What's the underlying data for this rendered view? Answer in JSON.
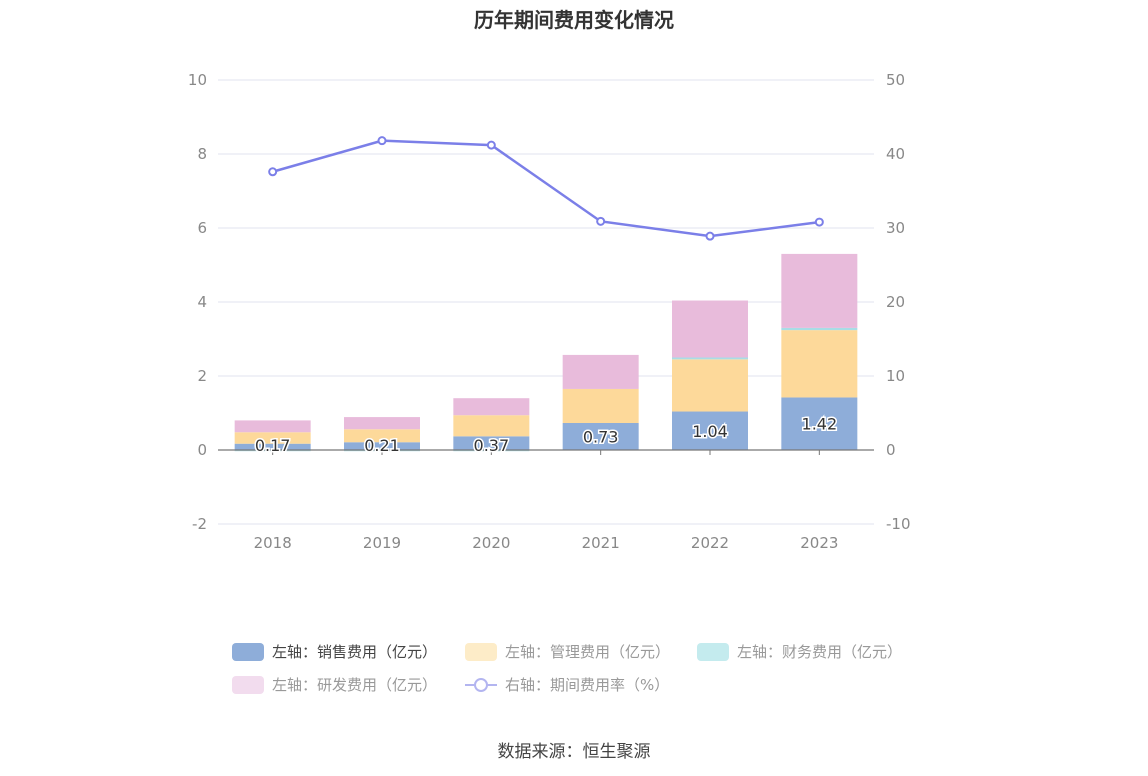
{
  "title": "历年期间费用变化情况",
  "source": "数据来源：恒生聚源",
  "chart_data": {
    "type": "bar",
    "stacked": true,
    "categories": [
      "2018",
      "2019",
      "2020",
      "2021",
      "2022",
      "2023"
    ],
    "y_left": {
      "ylim": [
        -2,
        10
      ],
      "ticks": [
        "10",
        "8",
        "6",
        "4",
        "2",
        "0",
        "-2"
      ]
    },
    "y_right": {
      "ylim": [
        -10,
        50
      ],
      "ticks": [
        "50",
        "40",
        "30",
        "20",
        "10",
        "0",
        "-10"
      ]
    },
    "series": [
      {
        "name": "左轴：销售费用（亿元）",
        "kind": "bar",
        "axis": "left",
        "color": "#8eadd9",
        "values": [
          0.17,
          0.21,
          0.37,
          0.73,
          1.04,
          1.42
        ],
        "labels": [
          "0.17",
          "0.21",
          "0.37",
          "0.73",
          "1.04",
          "1.42"
        ]
      },
      {
        "name": "左轴：管理费用（亿元）",
        "kind": "bar",
        "axis": "left",
        "color": "#fdd99a",
        "values": [
          0.31,
          0.35,
          0.57,
          0.92,
          1.41,
          1.82
        ]
      },
      {
        "name": "左轴：财务费用（亿元）",
        "kind": "bar",
        "axis": "left",
        "color": "#a8dde6",
        "values": [
          -0.01,
          -0.01,
          -0.03,
          0.0,
          0.05,
          0.06
        ]
      },
      {
        "name": "左轴：研发费用（亿元）",
        "kind": "bar",
        "axis": "left",
        "color": "#e8bbdb",
        "values": [
          0.32,
          0.33,
          0.46,
          0.92,
          1.54,
          2.0
        ]
      },
      {
        "name": "右轴：期间费用率（%）",
        "kind": "line",
        "axis": "right",
        "color": "#7b7fe8",
        "values": [
          37.6,
          41.8,
          41.2,
          30.9,
          28.9,
          30.8
        ]
      }
    ],
    "legend_position": "bottom",
    "grid": true
  }
}
